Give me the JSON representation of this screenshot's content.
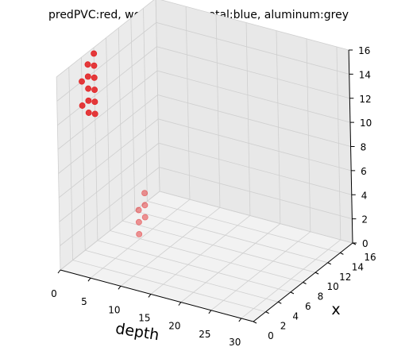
{
  "chart_data": {
    "type": "scatter",
    "projection": "3d",
    "title": "predPVC:red, wood:green, metal:blue, aluminum:grey",
    "xlabel": "depth",
    "ylabel": "x",
    "zlabel": "",
    "xlim": [
      0,
      32
    ],
    "ylim": [
      0,
      16
    ],
    "zlim": [
      0,
      16
    ],
    "xticks": [
      0,
      5,
      10,
      15,
      20,
      25,
      30
    ],
    "yticks": [
      0,
      2,
      4,
      6,
      8,
      10,
      12,
      14,
      16
    ],
    "zticks": [
      0,
      2,
      4,
      6,
      8,
      10,
      12,
      14,
      16
    ],
    "grid": true,
    "colors": {
      "pane": "#f2f2f2",
      "grid": "#cfcfcf",
      "red": "#e31a1c"
    },
    "series": [
      {
        "color": "#e31a1c",
        "points": [
          {
            "x": 0,
            "y": 4,
            "z": 14
          },
          {
            "x": 0,
            "y": 4,
            "z": 12
          },
          {
            "x": 0,
            "y": 5,
            "z": 15
          },
          {
            "x": 0,
            "y": 5,
            "z": 14
          },
          {
            "x": 0,
            "y": 5,
            "z": 13
          },
          {
            "x": 0,
            "y": 5,
            "z": 12
          },
          {
            "x": 0,
            "y": 5,
            "z": 11
          },
          {
            "x": 0,
            "y": 6,
            "z": 15.5
          },
          {
            "x": 0,
            "y": 6,
            "z": 14.5
          },
          {
            "x": 0,
            "y": 6,
            "z": 13.5
          },
          {
            "x": 0,
            "y": 6,
            "z": 12.5
          },
          {
            "x": 0,
            "y": 6,
            "z": 11.5
          },
          {
            "x": 0,
            "y": 6,
            "z": 10.5
          },
          {
            "x": 8,
            "y": 5,
            "z": 4
          },
          {
            "x": 8,
            "y": 5,
            "z": 3
          },
          {
            "x": 8,
            "y": 5,
            "z": 2
          },
          {
            "x": 8,
            "y": 6,
            "z": 5
          },
          {
            "x": 8,
            "y": 6,
            "z": 4
          },
          {
            "x": 8,
            "y": 6,
            "z": 3
          }
        ]
      }
    ]
  }
}
